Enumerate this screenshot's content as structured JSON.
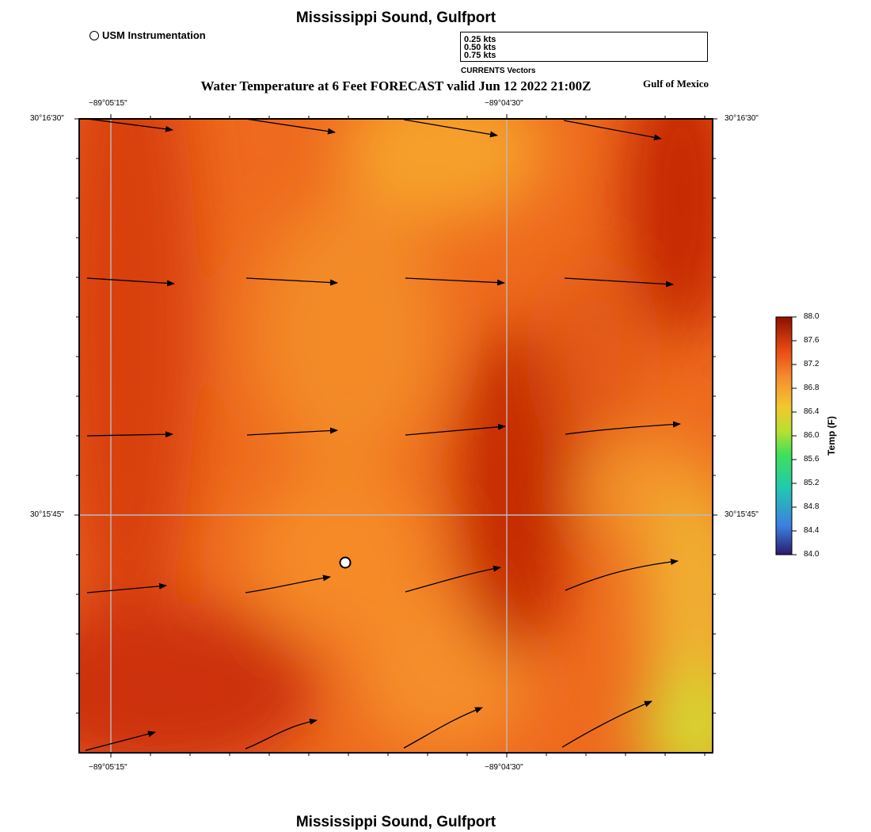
{
  "title": "Mississippi Sound, Gulfport",
  "footer_title": "Mississippi Sound, Gulfport",
  "subtitle": "Water Temperature at 6 Feet FORECAST valid Jun 12 2022 21:00Z",
  "region_label": "Gulf of Mexico",
  "usm_legend_label": "USM Instrumentation",
  "vector_legend": {
    "rows": [
      "0.25 kts",
      "0.50 kts",
      "0.75 kts"
    ],
    "caption": "CURRENTS Vectors"
  },
  "axes": {
    "top_lon": [
      "−89°05'15\"",
      "−89°04'30\""
    ],
    "bottom_lon": [
      "−89°05'15\"",
      "−89°04'30\""
    ],
    "left_lat": [
      "30°16'30\"",
      "30°15'45\""
    ],
    "right_lat": [
      "30°16'30\"",
      "30°15'45\""
    ]
  },
  "colorbar": {
    "title": "Temp (F)",
    "ticks": [
      "88.0",
      "87.6",
      "87.2",
      "86.8",
      "86.4",
      "86.0",
      "85.6",
      "85.2",
      "84.8",
      "84.4",
      "84.0"
    ],
    "min": 84.0,
    "max": 88.0,
    "colors": [
      "#2b1a6b",
      "#3c7fe0",
      "#22c8b0",
      "#3ee05a",
      "#b8e030",
      "#f2c830",
      "#f59030",
      "#e84a14",
      "#8c1000"
    ]
  },
  "temperature_colors": {
    "warmest": "#c02400",
    "warm": "#e04a14",
    "mid": "#f37a24",
    "cool": "#f6a02a",
    "coolest": "#d8dc30"
  },
  "current_vectors_kts_direction": "generally eastward, turning northeast in southern rows"
}
